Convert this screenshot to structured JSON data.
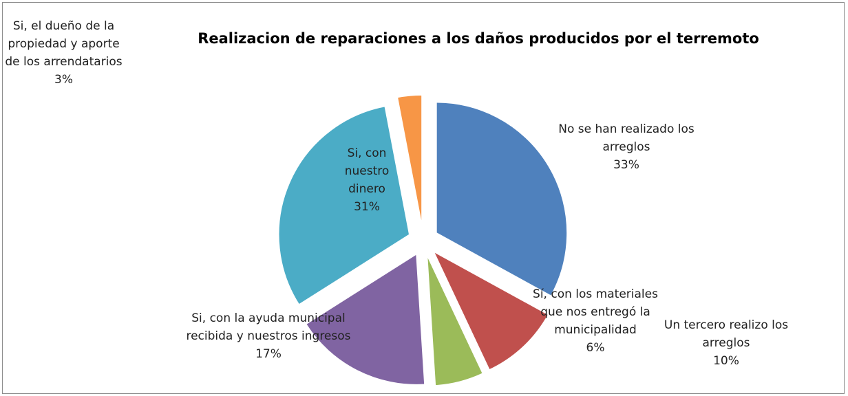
{
  "chart_data": {
    "type": "pie",
    "title": "Realizacion de reparaciones a los daños producidos por el terremoto",
    "categories": [
      "No se han realizado los arreglos",
      "Un tercero realizo los arreglos",
      "Sí, con los materiales que nos entregó la municipalidad",
      "Si, con la ayuda municipal recibida  y nuestros  ingresos",
      "Si, con nuestro dinero",
      "Si, el dueño de la propiedad y aporte de los arrendatarios"
    ],
    "values": [
      33,
      10,
      6,
      17,
      31,
      3
    ],
    "value_labels": [
      "33%",
      "10%",
      "6%",
      "17%",
      "31%",
      "3%"
    ],
    "colors": [
      "#4f81bd",
      "#c0504d",
      "#9bbb59",
      "#8064a2",
      "#4bacc6",
      "#f79646"
    ]
  }
}
